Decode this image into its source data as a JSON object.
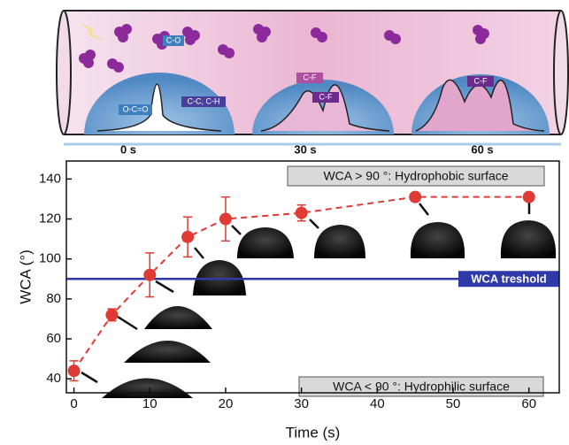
{
  "schematic": {
    "time_labels": [
      "0 s",
      "30 s",
      "60 s"
    ],
    "peak_labels": [
      "C-O",
      "O-C=O",
      "C-C, C-H",
      "C-F",
      "C-F",
      "C-F"
    ]
  },
  "chart_data": {
    "type": "line",
    "xlabel": "Time (s)",
    "ylabel": "WCA (°)",
    "x": [
      0,
      5,
      10,
      15,
      20,
      30,
      45,
      60
    ],
    "values": [
      44,
      72,
      92,
      111,
      120,
      123,
      131,
      131
    ],
    "errors": [
      5,
      3,
      11,
      10,
      11,
      4,
      2,
      0
    ],
    "color": "#e03a34",
    "xlim": [
      -1,
      64
    ],
    "ylim": [
      33,
      149
    ],
    "xticks": [
      0,
      10,
      20,
      30,
      40,
      50,
      60
    ],
    "yticks": [
      40,
      60,
      80,
      100,
      120,
      140
    ],
    "threshold": {
      "value": 90,
      "label": "WCA treshold",
      "color": "#2f3aa8"
    },
    "annotations": [
      "WCA > 90 °: Hydrophobic surface",
      "WCA < 90 °: Hydrophilic surface"
    ]
  }
}
